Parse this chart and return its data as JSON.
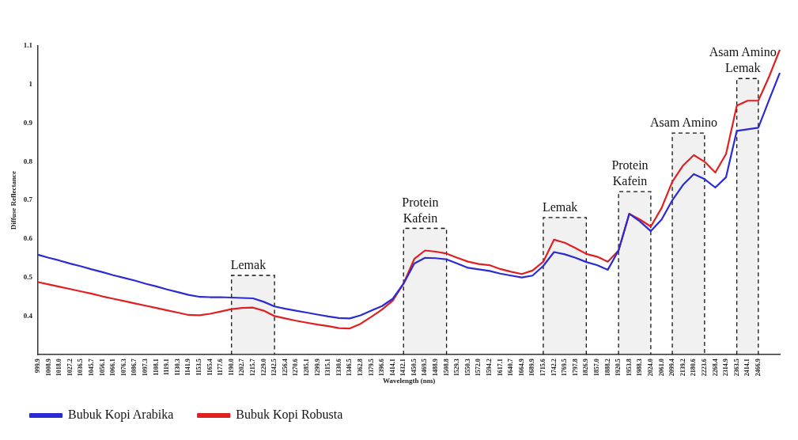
{
  "chart_data": {
    "type": "line",
    "xlabel": "Wavelength (nm)",
    "ylabel": "Diffuse Reflectance",
    "categories": [
      "999.9",
      "1008.9",
      "1018.0",
      "1027.2",
      "1036.5",
      "1045.7",
      "1056.1",
      "1066.1",
      "1076.3",
      "1086.7",
      "1097.3",
      "1108.1",
      "1119.1",
      "1130.3",
      "1141.9",
      "1153.5",
      "1165.4",
      "1177.6",
      "1190.0",
      "1202.7",
      "1215.7",
      "1229.0",
      "1242.5",
      "1256.4",
      "1270.6",
      "1285.1",
      "1299.9",
      "1315.1",
      "1330.6",
      "1346.5",
      "1362.8",
      "1379.5",
      "1396.6",
      "1414.1",
      "1432.1",
      "1450.5",
      "1469.5",
      "1488.9",
      "1508.8",
      "1529.3",
      "1550.3",
      "1572.0",
      "1594.2",
      "1617.1",
      "1640.7",
      "1664.9",
      "1689.9",
      "1715.6",
      "1742.2",
      "1769.5",
      "1797.8",
      "1826.9",
      "1857.0",
      "1888.2",
      "1920.5",
      "1953.8",
      "1988.3",
      "2024.0",
      "2061.0",
      "2099.4",
      "2139.2",
      "2180.6",
      "2223.6",
      "2268.4",
      "2314.9",
      "2363.5",
      "2414.1",
      "2466.9",
      null,
      null
    ],
    "series": [
      {
        "name": "Bubuk Kopi Arabika",
        "color": "#2b2bd6",
        "values": [
          0.559,
          0.551,
          0.544,
          0.536,
          0.529,
          0.521,
          0.514,
          0.506,
          0.499,
          0.492,
          0.484,
          0.477,
          0.469,
          0.462,
          0.455,
          0.45,
          0.449,
          0.449,
          0.448,
          0.447,
          0.446,
          0.437,
          0.425,
          0.419,
          0.414,
          0.409,
          0.404,
          0.399,
          0.395,
          0.394,
          0.402,
          0.414,
          0.426,
          0.445,
          0.484,
          0.536,
          0.551,
          0.55,
          0.547,
          0.536,
          0.525,
          0.521,
          0.517,
          0.51,
          0.505,
          0.5,
          0.505,
          0.53,
          0.566,
          0.56,
          0.551,
          0.54,
          0.532,
          0.52,
          0.57,
          0.665,
          0.645,
          0.62,
          0.65,
          0.7,
          0.74,
          0.768,
          0.755,
          0.733,
          0.76,
          0.88,
          0.884,
          0.888,
          0.96,
          1.03
        ]
      },
      {
        "name": "Bubuk Kopi Robusta",
        "color": "#e02020",
        "values": [
          0.488,
          0.482,
          0.476,
          0.47,
          0.464,
          0.458,
          0.451,
          0.445,
          0.439,
          0.433,
          0.427,
          0.421,
          0.415,
          0.409,
          0.403,
          0.402,
          0.406,
          0.412,
          0.418,
          0.421,
          0.422,
          0.414,
          0.4,
          0.394,
          0.388,
          0.383,
          0.378,
          0.374,
          0.369,
          0.368,
          0.38,
          0.398,
          0.417,
          0.44,
          0.484,
          0.548,
          0.57,
          0.567,
          0.562,
          0.551,
          0.541,
          0.535,
          0.532,
          0.522,
          0.515,
          0.509,
          0.518,
          0.541,
          0.598,
          0.59,
          0.576,
          0.561,
          0.554,
          0.541,
          0.57,
          0.665,
          0.65,
          0.632,
          0.68,
          0.748,
          0.79,
          0.817,
          0.8,
          0.772,
          0.82,
          0.945,
          0.958,
          0.958,
          1.02,
          1.09
        ]
      }
    ],
    "ylim": [
      0.3,
      1.1
    ],
    "yticks": [
      0.4,
      0.5,
      0.6,
      0.7,
      0.8,
      0.9,
      1,
      1.1
    ],
    "grid": false,
    "legend": "bottom left",
    "marker": "none",
    "line_style": "solid",
    "bands": [
      {
        "axis": "x",
        "from": "1190.0",
        "to": "1242.5",
        "label": "Lemak"
      },
      {
        "axis": "x",
        "from": "1432.1",
        "to": "1508.8",
        "label": "Protein\nKafein"
      },
      {
        "axis": "x",
        "from": "1715.6",
        "to": "1826.9",
        "label": "Lemak"
      },
      {
        "axis": "x",
        "from": "1920.5",
        "to": "2024.0",
        "label": "Protein\nKafein"
      },
      {
        "axis": "x",
        "from": "2099.4",
        "to": "2223.6",
        "label": "Asam Amino"
      },
      {
        "axis": "x",
        "from": "2363.5",
        "to": "2466.9",
        "label": "Asam Amino\nLemak"
      }
    ]
  }
}
